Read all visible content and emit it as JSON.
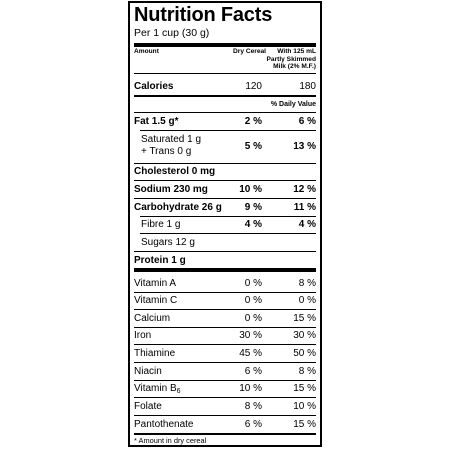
{
  "title": "Nutrition Facts",
  "serving": "Per 1 cup (30 g)",
  "header": {
    "amount": "Amount",
    "col1": "Dry Cereal",
    "col2_line1": "With 125 mL",
    "col2_line2": "Partly Skimmed",
    "col2_line3": "Milk (2% M.F.)"
  },
  "calories": {
    "label": "Calories",
    "v1": "120",
    "v2": "180"
  },
  "dv_label": "% Daily Value",
  "nutrients": {
    "fat": {
      "label": "Fat 1.5 g*",
      "v1": "2 %",
      "v2": "6 %"
    },
    "saturated": {
      "line1": "Saturated 1 g",
      "line2": "+ Trans 0 g",
      "v1": "5 %",
      "v2": "13 %"
    },
    "cholesterol": {
      "label": "Cholesterol 0 mg"
    },
    "sodium": {
      "label": "Sodium 230 mg",
      "v1": "10 %",
      "v2": "12 %"
    },
    "carbohydrate": {
      "label": "Carbohydrate 26 g",
      "v1": "9 %",
      "v2": "11 %"
    },
    "fibre": {
      "label": "Fibre 1 g",
      "v1": "4 %",
      "v2": "4 %"
    },
    "sugars": {
      "label": "Sugars 12 g"
    },
    "protein": {
      "label": "Protein 1 g"
    }
  },
  "vitamins": {
    "vitamin_a": {
      "label": "Vitamin A",
      "v1": "0 %",
      "v2": "8 %"
    },
    "vitamin_c": {
      "label": "Vitamin C",
      "v1": "0 %",
      "v2": "0 %"
    },
    "calcium": {
      "label": "Calcium",
      "v1": "0 %",
      "v2": "15 %"
    },
    "iron": {
      "label": "Iron",
      "v1": "30 %",
      "v2": "30 %"
    },
    "thiamine": {
      "label": "Thiamine",
      "v1": "45 %",
      "v2": "50 %"
    },
    "niacin": {
      "label": "Niacin",
      "v1": "6 %",
      "v2": "8 %"
    },
    "vitamin_b6": {
      "label": "Vitamin B",
      "sub": "6",
      "v1": "10 %",
      "v2": "15 %"
    },
    "folate": {
      "label": "Folate",
      "v1": "8 %",
      "v2": "10 %"
    },
    "pantothenate": {
      "label": "Pantothenate",
      "v1": "6 %",
      "v2": "15 %"
    }
  },
  "footnote": "* Amount in dry cereal"
}
